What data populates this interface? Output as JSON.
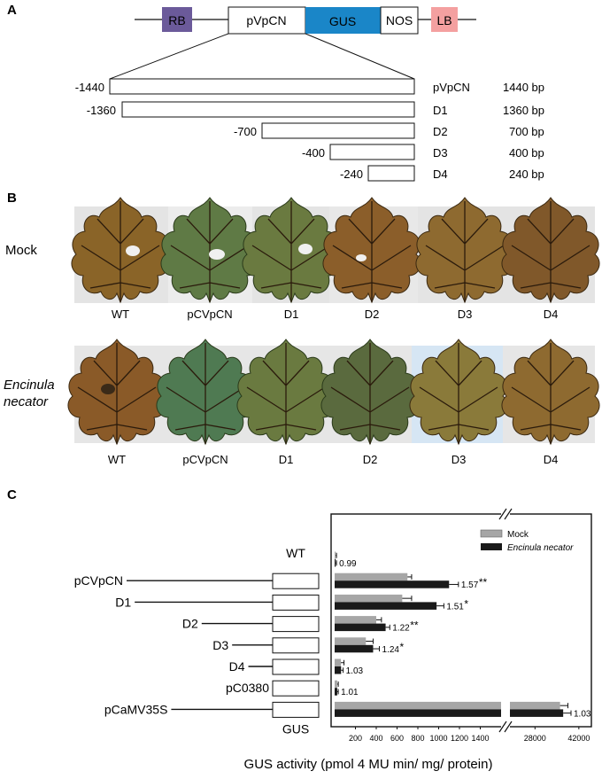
{
  "panel_a": {
    "letter": "A",
    "construct": [
      "RB",
      "pVpCN",
      "GUS",
      "NOS",
      "LB"
    ],
    "construct_colors": {
      "RB": "#6b5a9a",
      "GUS": "#1a86c8",
      "LB": "#f4a0a0"
    },
    "fragments": [
      {
        "start_label": "-1440",
        "name": "pVpCN",
        "size": "1440 bp",
        "length": 1440
      },
      {
        "start_label": "-1360",
        "name": "D1",
        "size": "1360 bp",
        "length": 1360
      },
      {
        "start_label": "-700",
        "name": "D2",
        "size": "700 bp",
        "length": 700
      },
      {
        "start_label": "-400",
        "name": "D3",
        "size": "400 bp",
        "length": 400
      },
      {
        "start_label": "-240",
        "name": "D4",
        "size": "240 bp",
        "length": 240
      }
    ]
  },
  "panel_b": {
    "letter": "B",
    "rows": [
      {
        "condition": [
          "Mock"
        ],
        "italic": false,
        "labels": [
          "WT",
          "pCVpCN",
          "D1",
          "D2",
          "D3",
          "D4"
        ]
      },
      {
        "condition": [
          "Encinula",
          "necator"
        ],
        "italic": true,
        "labels": [
          "WT",
          "pCVpCN",
          "D1",
          "D2",
          "D3",
          "D4"
        ]
      }
    ]
  },
  "panel_c": {
    "letter": "C",
    "constructs": [
      {
        "name": "WT",
        "box": false
      },
      {
        "name": "pCVpCN",
        "box": true,
        "line_length": 1440
      },
      {
        "name": "D1",
        "box": true,
        "line_length": 1360
      },
      {
        "name": "D2",
        "box": true,
        "line_length": 700
      },
      {
        "name": "D3",
        "box": true,
        "line_length": 400
      },
      {
        "name": "D4",
        "box": true,
        "line_length": 240
      },
      {
        "name": "pC0380",
        "box": true,
        "line_length": 0
      },
      {
        "name": "pCaMV35S",
        "box": true,
        "line_length": 1000
      }
    ],
    "box_label": "GUS"
  },
  "chart_data": {
    "type": "bar",
    "orientation": "horizontal",
    "categories": [
      "WT",
      "pCVpCN",
      "D1",
      "D2",
      "D3",
      "D4",
      "pC0380",
      "pCaMV35S"
    ],
    "series": [
      {
        "name": "Mock",
        "color": "#a6a6a6",
        "values": [
          10,
          700,
          650,
          400,
          300,
          60,
          25,
          36000
        ],
        "errors": [
          8,
          40,
          90,
          50,
          70,
          30,
          10,
          2500
        ]
      },
      {
        "name": "Encinula necator",
        "color": "#1a1a1a",
        "values": [
          10,
          1100,
          980,
          490,
          370,
          62,
          25,
          37000
        ],
        "errors": [
          8,
          90,
          70,
          40,
          60,
          20,
          10,
          2500
        ]
      }
    ],
    "fold_change": [
      "0.99",
      "1.57",
      "1.51",
      "1.22",
      "1.24",
      "1.03",
      "1.01",
      "1.03"
    ],
    "significance": [
      "",
      "**",
      "*",
      "**",
      "*",
      "",
      "",
      ""
    ],
    "x_ticks_left": [
      "200",
      "400",
      "600",
      "800",
      "1000",
      "1200",
      "1400"
    ],
    "x_ticks_right": [
      "28000",
      "42000"
    ],
    "x_break": [
      1600,
      20000
    ],
    "xlim_left": [
      0,
      1600
    ],
    "xlim_right": [
      20000,
      46000
    ],
    "xlabel": "GUS activity (pmol 4 MU min/ mg/ protein)",
    "legend_position": "top-right"
  },
  "colors": {
    "leaf_brown": "#8a6428",
    "leaf_green": "#5f7a45",
    "photo_bg": "#e4e4e4"
  }
}
